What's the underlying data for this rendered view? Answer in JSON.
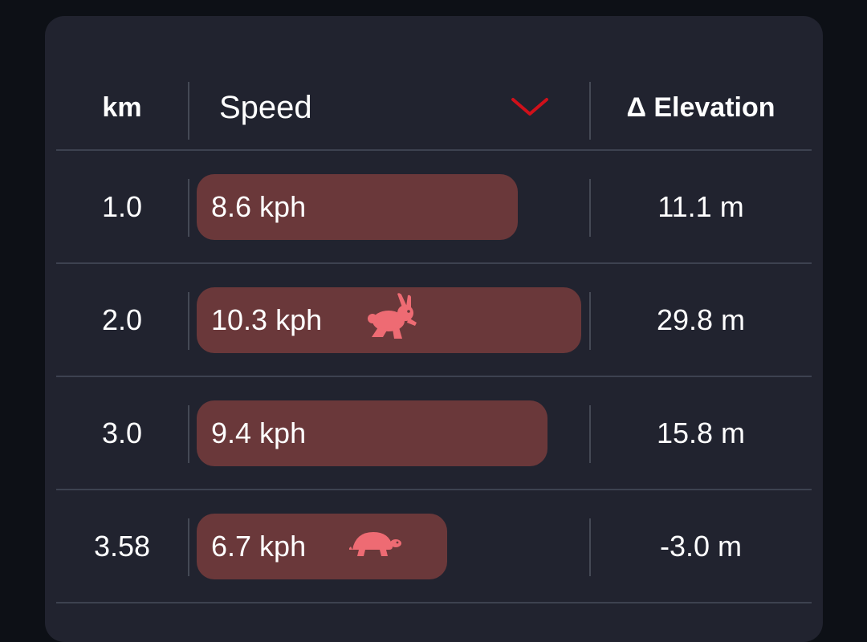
{
  "table": {
    "columns": {
      "km": "km",
      "speed": "Speed",
      "elevation": "Δ Elevation"
    },
    "sort_icon": "chevron-down-icon",
    "colors": {
      "background": "#0d1016",
      "card": "#21232f",
      "bar": "#6a383a",
      "icon": "#ee6b73",
      "chevron": "#d0101a"
    },
    "rows": [
      {
        "km": "1.0",
        "speed": "8.6 kph",
        "speed_value": 8.6,
        "elevation": "11.1 m",
        "badge": ""
      },
      {
        "km": "2.0",
        "speed": "10.3 kph",
        "speed_value": 10.3,
        "elevation": "29.8 m",
        "badge": "rabbit-icon"
      },
      {
        "km": "3.0",
        "speed": "9.4 kph",
        "speed_value": 9.4,
        "elevation": "15.8 m",
        "badge": ""
      },
      {
        "km": "3.58",
        "speed": "6.7 kph",
        "speed_value": 6.7,
        "elevation": "-3.0 m",
        "badge": "turtle-icon"
      }
    ]
  }
}
